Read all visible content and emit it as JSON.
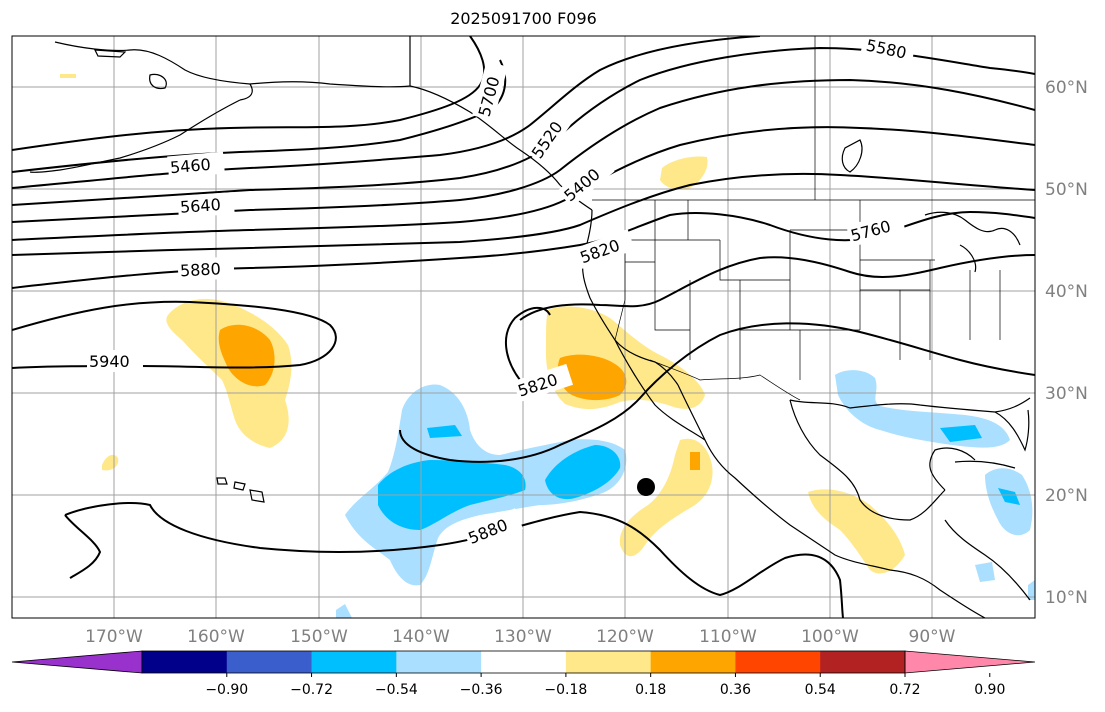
{
  "title": "2025091700 F096",
  "colors": {
    "contour": "#000000",
    "grid": "#a0a0a0",
    "coast": "#000000",
    "pos1": "#ffe88a",
    "pos2": "#ffa500",
    "neg1": "#aadfff",
    "neg2": "#00bfff"
  },
  "map": {
    "lat_labels": [
      "60°N",
      "50°N",
      "40°N",
      "30°N",
      "20°N",
      "10°N"
    ],
    "lon_labels": [
      "170°W",
      "160°W",
      "150°W",
      "140°W",
      "130°W",
      "120°W",
      "110°W",
      "100°W",
      "90°W"
    ],
    "contour_labels": [
      "5580",
      "5460",
      "5640",
      "5880",
      "5940",
      "5820",
      "5820",
      "5880",
      "5760",
      "5520",
      "5400",
      "5700"
    ],
    "marker": "tropical-cyclone-position"
  },
  "colorbar": {
    "ticks": [
      "−0.90",
      "−0.72",
      "−0.54",
      "−0.36",
      "−0.18",
      "0.18",
      "0.36",
      "0.54",
      "0.72",
      "0.90"
    ],
    "colors": [
      "#9932cc",
      "#00008b",
      "#3a5fcd",
      "#00bfff",
      "#aadfff",
      "#ffffff",
      "#ffe88a",
      "#ffa500",
      "#ff4500",
      "#b22222",
      "#ff88aa"
    ]
  }
}
